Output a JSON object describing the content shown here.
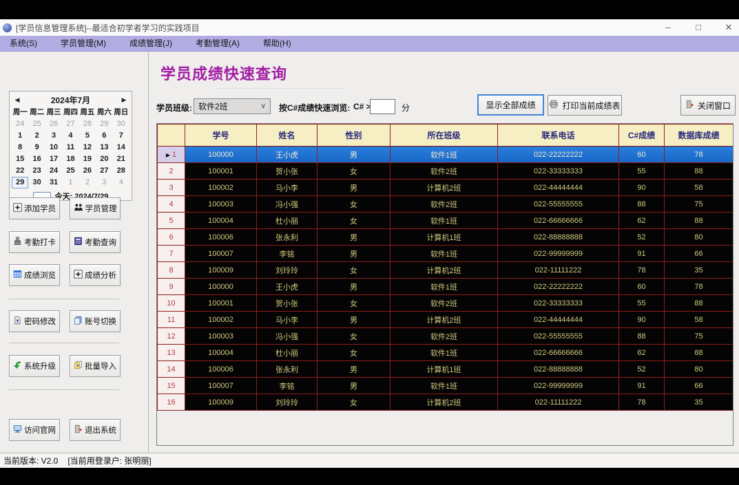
{
  "window": {
    "title": "[学员信息管理系统]--最适合初学者学习的实践项目",
    "controls": {
      "minimize": "–",
      "maximize": "□",
      "close": "✕"
    }
  },
  "menu": {
    "items": [
      {
        "label": "系统(S)"
      },
      {
        "label": "学员管理(M)"
      },
      {
        "label": "成绩管理(J)"
      },
      {
        "label": "考勤管理(A)"
      },
      {
        "label": "帮助(H)"
      }
    ]
  },
  "calendar": {
    "prev": "◀",
    "next": "▶",
    "title": "2024年7月",
    "weekdays": [
      "周一",
      "周二",
      "周三",
      "周四",
      "周五",
      "周六",
      "周日"
    ],
    "weeks": [
      [
        {
          "d": "24",
          "muted": true
        },
        {
          "d": "25",
          "muted": true
        },
        {
          "d": "26",
          "muted": true
        },
        {
          "d": "27",
          "muted": true
        },
        {
          "d": "28",
          "muted": true
        },
        {
          "d": "29",
          "muted": true
        },
        {
          "d": "30",
          "muted": true
        }
      ],
      [
        {
          "d": "1"
        },
        {
          "d": "2"
        },
        {
          "d": "3"
        },
        {
          "d": "4"
        },
        {
          "d": "5"
        },
        {
          "d": "6"
        },
        {
          "d": "7"
        }
      ],
      [
        {
          "d": "8"
        },
        {
          "d": "9"
        },
        {
          "d": "10"
        },
        {
          "d": "11"
        },
        {
          "d": "12"
        },
        {
          "d": "13"
        },
        {
          "d": "14"
        }
      ],
      [
        {
          "d": "15"
        },
        {
          "d": "16"
        },
        {
          "d": "17"
        },
        {
          "d": "18"
        },
        {
          "d": "19"
        },
        {
          "d": "20"
        },
        {
          "d": "21"
        }
      ],
      [
        {
          "d": "22"
        },
        {
          "d": "23"
        },
        {
          "d": "24"
        },
        {
          "d": "25"
        },
        {
          "d": "26"
        },
        {
          "d": "27"
        },
        {
          "d": "28"
        }
      ],
      [
        {
          "d": "29",
          "today": true
        },
        {
          "d": "30"
        },
        {
          "d": "31"
        },
        {
          "d": "1",
          "muted": true
        },
        {
          "d": "2",
          "muted": true
        },
        {
          "d": "3",
          "muted": true
        },
        {
          "d": "4",
          "muted": true
        }
      ]
    ],
    "today_label": "今天: 2024/7/29"
  },
  "sidebar": {
    "buttons": [
      {
        "label": "添加学员",
        "icon": "add-student-icon"
      },
      {
        "label": "学员管理",
        "icon": "students-icon"
      },
      {
        "label": "考勤打卡",
        "icon": "punch-card-icon"
      },
      {
        "label": "考勤查询",
        "icon": "attendance-query-icon"
      },
      {
        "label": "成绩浏览",
        "icon": "grades-browse-icon"
      },
      {
        "label": "成绩分析",
        "icon": "grades-analyze-icon"
      },
      {
        "label": "密码修改",
        "icon": "password-icon"
      },
      {
        "label": "账号切换",
        "icon": "switch-account-icon"
      },
      {
        "label": "系统升级",
        "icon": "upgrade-icon"
      },
      {
        "label": "批量导入",
        "icon": "batch-import-icon"
      },
      {
        "label": "访问官网",
        "icon": "website-icon"
      },
      {
        "label": "退出系统",
        "icon": "exit-icon"
      }
    ]
  },
  "main": {
    "page_title": "学员成绩快速查询",
    "filters": {
      "class_label": "学员班级:",
      "class_value": "软件2班",
      "class_chevron": "∨",
      "csharp_label": "按C#成绩快速浏览:",
      "csharp_prefix": "C# >",
      "csharp_value": "",
      "csharp_suffix": "分"
    },
    "buttons": {
      "show_all": "显示全部成绩",
      "print": "打印当前成绩表",
      "close": "关闭窗口"
    }
  },
  "table": {
    "row_marker": "▶",
    "columns": [
      "学号",
      "姓名",
      "性别",
      "所在班级",
      "联系电话",
      "C#成绩",
      "数据库成绩"
    ],
    "selected_row": 0,
    "rows": [
      {
        "num": "1",
        "cells": [
          "100000",
          "王小虎",
          "男",
          "软件1班",
          "022-22222222",
          "60",
          "78"
        ]
      },
      {
        "num": "2",
        "cells": [
          "100001",
          "贺小张",
          "女",
          "软件2班",
          "022-33333333",
          "55",
          "88"
        ]
      },
      {
        "num": "3",
        "cells": [
          "100002",
          "马小李",
          "男",
          "计算机2班",
          "022-44444444",
          "90",
          "58"
        ]
      },
      {
        "num": "4",
        "cells": [
          "100003",
          "冯小强",
          "女",
          "软件2班",
          "022-55555555",
          "88",
          "75"
        ]
      },
      {
        "num": "5",
        "cells": [
          "100004",
          "杜小丽",
          "女",
          "软件1班",
          "022-66666666",
          "62",
          "88"
        ]
      },
      {
        "num": "6",
        "cells": [
          "100006",
          "张永利",
          "男",
          "计算机1班",
          "022-88888888",
          "52",
          "80"
        ]
      },
      {
        "num": "7",
        "cells": [
          "100007",
          "李铭",
          "男",
          "软件1班",
          "022-99999999",
          "91",
          "66"
        ]
      },
      {
        "num": "8",
        "cells": [
          "100009",
          "刘玲玲",
          "女",
          "计算机2班",
          "022-11111222",
          "78",
          "35"
        ]
      },
      {
        "num": "9",
        "cells": [
          "100000",
          "王小虎",
          "男",
          "软件1班",
          "022-22222222",
          "60",
          "78"
        ]
      },
      {
        "num": "10",
        "cells": [
          "100001",
          "贺小张",
          "女",
          "软件2班",
          "022-33333333",
          "55",
          "88"
        ]
      },
      {
        "num": "11",
        "cells": [
          "100002",
          "马小李",
          "男",
          "计算机2班",
          "022-44444444",
          "90",
          "58"
        ]
      },
      {
        "num": "12",
        "cells": [
          "100003",
          "冯小强",
          "女",
          "软件2班",
          "022-55555555",
          "88",
          "75"
        ]
      },
      {
        "num": "13",
        "cells": [
          "100004",
          "杜小丽",
          "女",
          "软件1班",
          "022-66666666",
          "62",
          "88"
        ]
      },
      {
        "num": "14",
        "cells": [
          "100006",
          "张永利",
          "男",
          "计算机1班",
          "022-88888888",
          "52",
          "80"
        ]
      },
      {
        "num": "15",
        "cells": [
          "100007",
          "李铭",
          "男",
          "软件1班",
          "022-99999999",
          "91",
          "66"
        ]
      },
      {
        "num": "16",
        "cells": [
          "100009",
          "刘玲玲",
          "女",
          "计算机2班",
          "022-11111222",
          "78",
          "35"
        ]
      }
    ]
  },
  "statusbar": {
    "version": "当前版本: V2.0",
    "user": "[当前用登录户:  张明丽]"
  },
  "colors": {
    "menubar_bg": "#b1ace2",
    "page_title": "#a31da3",
    "table_header_bg": "#f6efc3",
    "table_header_text": "#26267e",
    "table_row_bg": "#040404",
    "table_row_text": "#d3cb80",
    "table_grid_line": "#8f1d1d",
    "selected_row_bg": "#1f72d0",
    "selected_row_text": "#f0ead0",
    "row_number_text": "#b03a3a"
  }
}
